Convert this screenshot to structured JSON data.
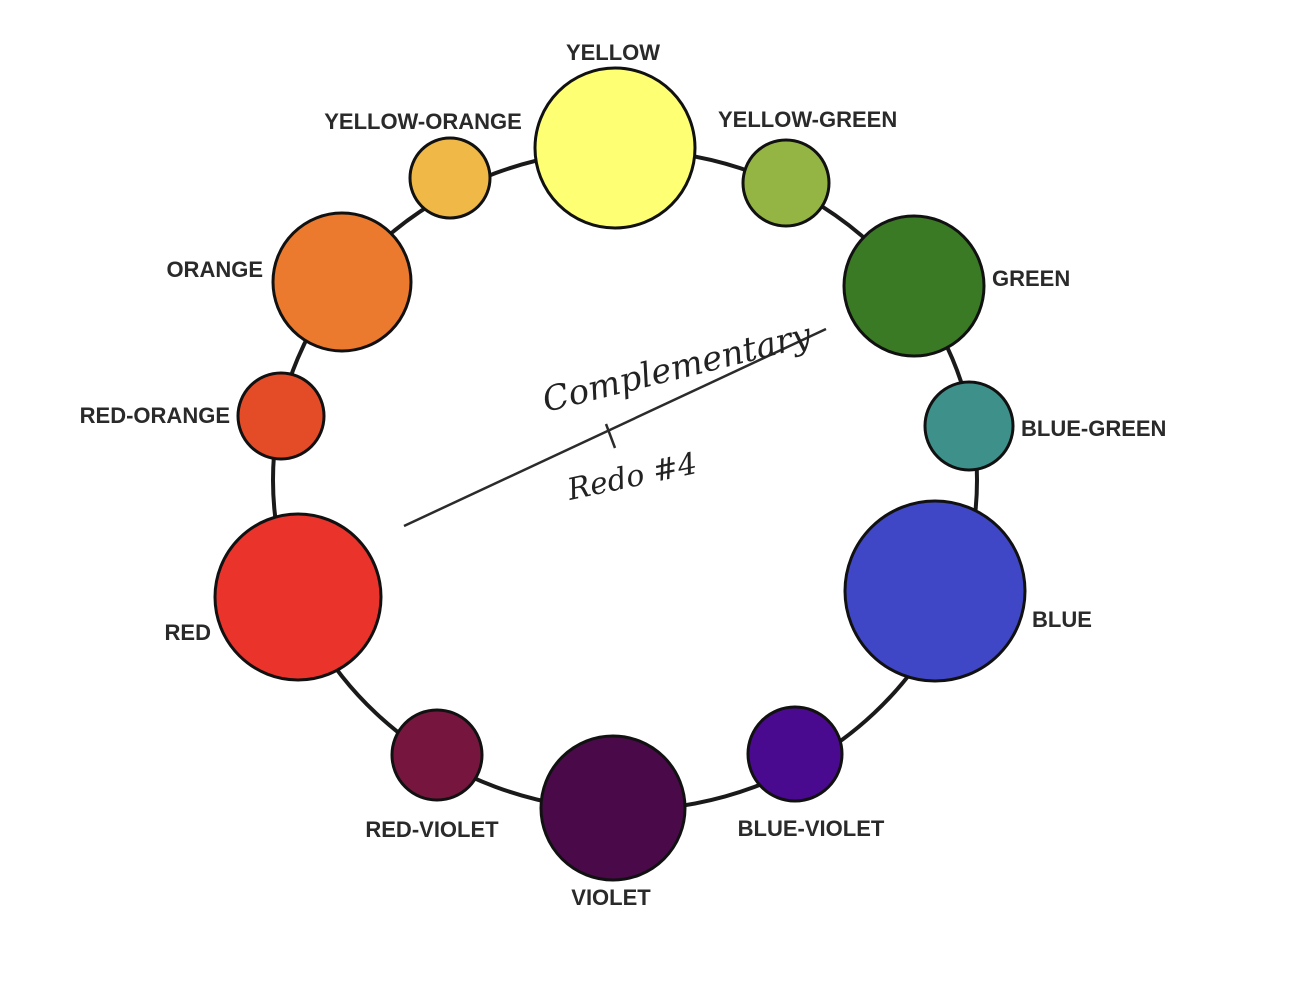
{
  "colors": [
    {
      "id": "yellow",
      "label": "YELLOW",
      "fill": "#ffff73"
    },
    {
      "id": "yellow-green",
      "label": "YELLOW-GREEN",
      "fill": "#94b544"
    },
    {
      "id": "green",
      "label": "GREEN",
      "fill": "#3b7a24"
    },
    {
      "id": "blue-green",
      "label": "BLUE-GREEN",
      "fill": "#3e918a"
    },
    {
      "id": "blue",
      "label": "BLUE",
      "fill": "#4047c6"
    },
    {
      "id": "blue-violet",
      "label": "BLUE-VIOLET",
      "fill": "#4a0a8f"
    },
    {
      "id": "violet",
      "label": "VIOLET",
      "fill": "#4a0a4a"
    },
    {
      "id": "red-violet",
      "label": "RED-VIOLET",
      "fill": "#76163e"
    },
    {
      "id": "red",
      "label": "RED",
      "fill": "#e9332b"
    },
    {
      "id": "red-orange",
      "label": "RED-ORANGE",
      "fill": "#e44b27"
    },
    {
      "id": "orange",
      "label": "ORANGE",
      "fill": "#ec7a2e"
    },
    {
      "id": "yellow-orange",
      "label": "YELLOW-ORANGE",
      "fill": "#efb847"
    }
  ],
  "annotation": {
    "line1": "Complementary",
    "line2": "Redo #4"
  }
}
